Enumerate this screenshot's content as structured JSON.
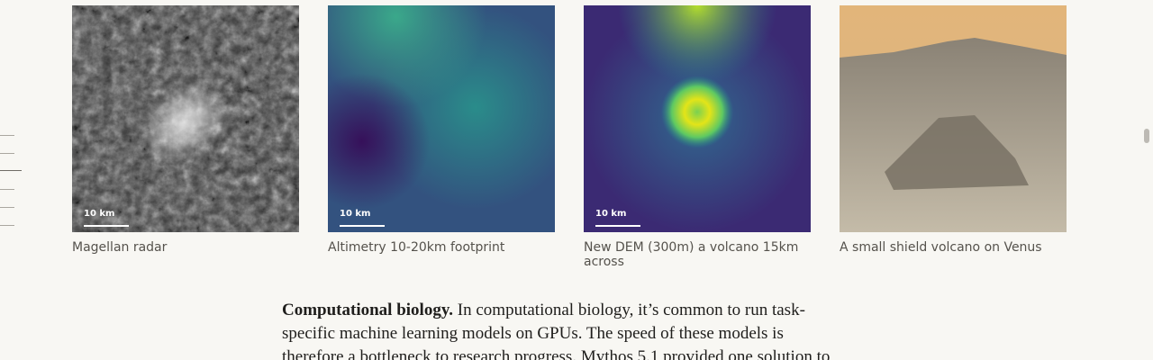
{
  "figures": [
    {
      "caption": "Magellan radar",
      "scale_label": "10 km"
    },
    {
      "caption": "Altimetry 10-20km footprint",
      "scale_label": "10 km"
    },
    {
      "caption": "New DEM (300m) a volcano 15km across",
      "scale_label": "10 km"
    },
    {
      "caption": "A small shield volcano on Venus"
    }
  ],
  "paragraph": {
    "lead": "Computational biology.",
    "text": "In computational biology, it’s common to run task-specific machine learning models on GPUs. The speed of these models is therefore a bottleneck to research progress. Mythos 5.1 provided one solution to"
  }
}
